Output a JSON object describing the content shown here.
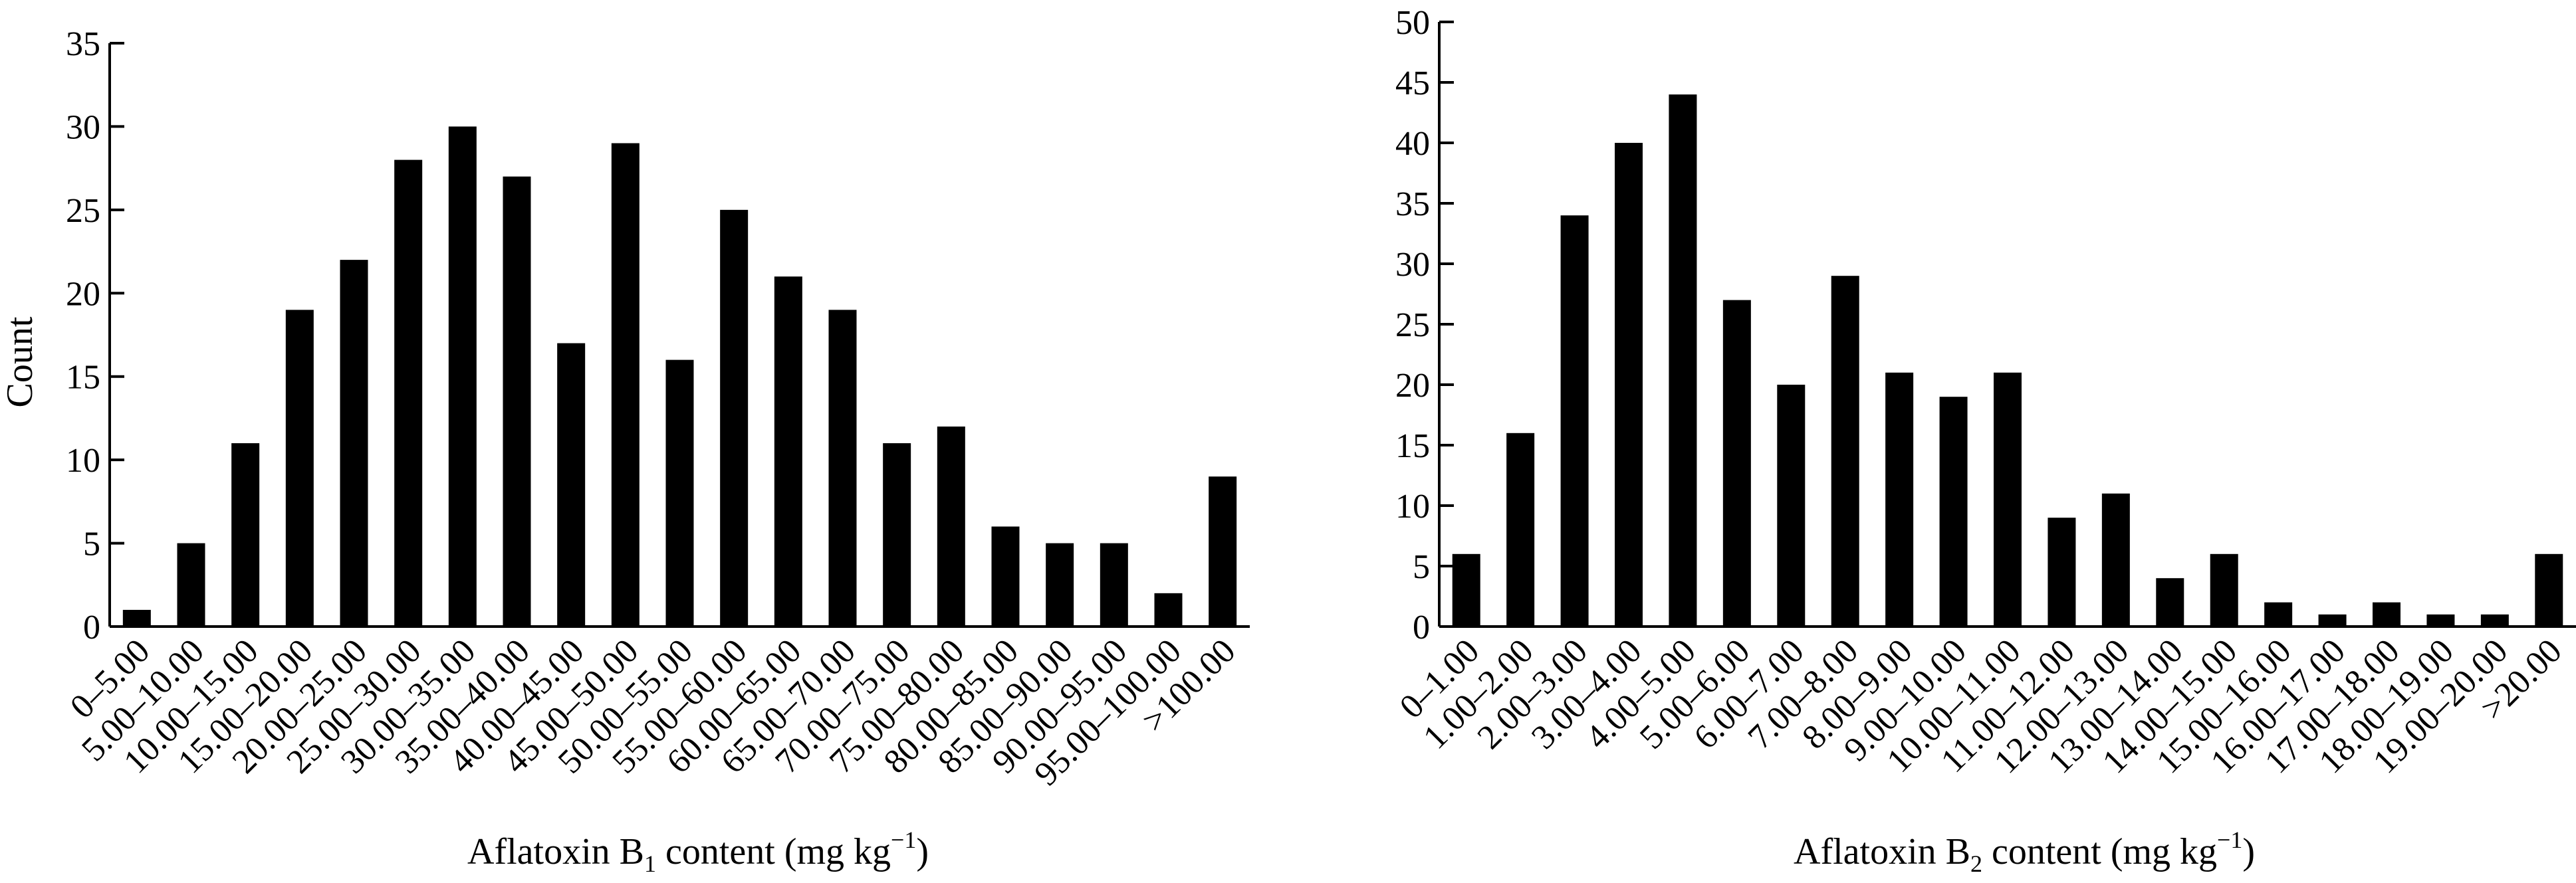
{
  "chart_data": [
    {
      "type": "bar",
      "xlabel": "Aflatoxin B1 content (mg kg−1)",
      "xlabel_parts": {
        "pre": "Aflatoxin B",
        "sub": "1",
        "mid": " content (mg kg",
        "sup": "−1",
        "post": ")"
      },
      "ylabel": "Count",
      "ylim": [
        0,
        35
      ],
      "yticks": [
        0,
        5,
        10,
        15,
        20,
        25,
        30,
        35
      ],
      "grid": false,
      "categories": [
        "0–5.00",
        "5.00–10.00",
        "10.00–15.00",
        "15.00–20.00",
        "20.00–25.00",
        "25.00–30.00",
        "30.00–35.00",
        "35.00–40.00",
        "40.00–45.00",
        "45.00–50.00",
        "50.00–55.00",
        "55.00–60.00",
        "60.00–65.00",
        "65.00–70.00",
        "70.00–75.00",
        "75.00–80.00",
        "80.00–85.00",
        "85.00–90.00",
        "90.00–95.00",
        "95.00–100.00",
        ">100.00"
      ],
      "values": [
        1,
        5,
        11,
        19,
        22,
        28,
        30,
        27,
        17,
        29,
        16,
        25,
        21,
        19,
        11,
        12,
        6,
        5,
        5,
        2,
        9
      ],
      "bar_color": "#000000"
    },
    {
      "type": "bar",
      "xlabel": "Aflatoxin B2 content (mg kg−1)",
      "xlabel_parts": {
        "pre": "Aflatoxin B",
        "sub": "2",
        "mid": " content (mg kg",
        "sup": "−1",
        "post": ")"
      },
      "ylabel": "",
      "ylim": [
        0,
        50
      ],
      "yticks": [
        0,
        5,
        10,
        15,
        20,
        25,
        30,
        35,
        40,
        45,
        50
      ],
      "grid": false,
      "categories": [
        "0–1.00",
        "1.00–2.00",
        "2.00–3.00",
        "3.00–4.00",
        "4.00–5.00",
        "5.00–6.00",
        "6.00–7.00",
        "7.00–8.00",
        "8.00–9.00",
        "9.00–10.00",
        "10.00–11.00",
        "11.00–12.00",
        "12.00–13.00",
        "13.00–14.00",
        "14.00–15.00",
        "15.00–16.00",
        "16.00–17.00",
        "17.00–18.00",
        "18.00–19.00",
        "19.00–20.00",
        ">20.00"
      ],
      "values": [
        6,
        16,
        34,
        40,
        44,
        27,
        20,
        29,
        21,
        19,
        21,
        9,
        11,
        4,
        6,
        2,
        1,
        2,
        1,
        1,
        6
      ],
      "bar_color": "#000000"
    }
  ]
}
